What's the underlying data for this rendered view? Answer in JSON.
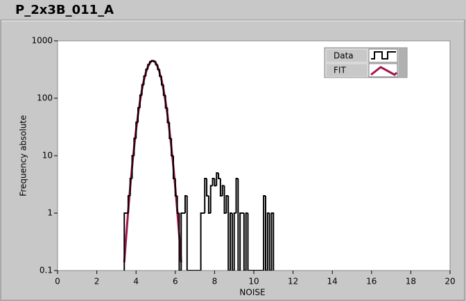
{
  "chart_data": {
    "type": "histogram",
    "title": "P_2x3B_011_A",
    "xlabel": "NOISE",
    "ylabel": "Frequency absolute",
    "xlim": [
      0,
      20
    ],
    "ylim": [
      0.1,
      1000
    ],
    "yscale": "log",
    "xticks": [
      0,
      2,
      4,
      6,
      8,
      10,
      12,
      14,
      16,
      18,
      20
    ],
    "yticks": [
      0.1,
      1,
      10,
      100,
      1000
    ],
    "legend": "top-right",
    "series": [
      {
        "name": "Data",
        "type": "histogram",
        "color": "#000000",
        "bins": [
          3.4,
          3.5,
          3.6,
          3.7,
          3.8,
          3.9,
          4.0,
          4.1,
          4.2,
          4.3,
          4.4,
          4.5,
          4.6,
          4.7,
          4.8,
          4.9,
          5.0,
          5.1,
          5.2,
          5.3,
          5.4,
          5.5,
          5.6,
          5.7,
          5.8,
          5.9,
          6.0,
          6.1,
          6.2,
          6.3,
          6.4,
          6.5,
          6.6,
          6.7,
          6.8,
          6.9,
          7.0,
          7.1,
          7.2,
          7.3,
          7.4,
          7.5,
          7.6,
          7.7,
          7.8,
          7.9,
          8.0,
          8.1,
          8.2,
          8.3,
          8.4,
          8.5,
          8.6,
          8.7,
          8.8,
          8.9,
          9.0,
          9.1,
          9.2,
          9.3,
          9.4,
          9.5,
          9.6,
          9.7,
          9.8,
          9.9,
          10.0,
          10.1,
          10.2,
          10.3,
          10.4,
          10.5,
          10.6,
          10.7,
          10.8,
          10.9,
          11.0
        ],
        "values": [
          1,
          1,
          2,
          4,
          10,
          20,
          38,
          68,
          113,
          172,
          243,
          318,
          386,
          433,
          450,
          440,
          386,
          318,
          243,
          172,
          113,
          68,
          38,
          20,
          10,
          4,
          2,
          1,
          0,
          1,
          1,
          2,
          0,
          0,
          0,
          0,
          0,
          0,
          0,
          1,
          1,
          4,
          2,
          1,
          3,
          4,
          3,
          5,
          4,
          2,
          3,
          1,
          2,
          0,
          1,
          0,
          1,
          4,
          0,
          1,
          1,
          0,
          1,
          0,
          0,
          0,
          0,
          0,
          0,
          0,
          0,
          2,
          0,
          1,
          0,
          1
        ]
      },
      {
        "name": "FIT",
        "type": "line",
        "color": "#a0144a",
        "x": [
          3.4,
          3.5,
          3.6,
          3.7,
          3.8,
          3.9,
          4.0,
          4.1,
          4.2,
          4.3,
          4.4,
          4.5,
          4.6,
          4.7,
          4.8,
          4.9,
          5.0,
          5.1,
          5.2,
          5.3,
          5.4,
          5.5,
          5.6,
          5.7,
          5.8,
          5.9,
          6.0,
          6.1,
          6.2,
          6.3
        ],
        "values": [
          0.139,
          0.405,
          1.1,
          2.78,
          6.48,
          14.0,
          27.9,
          51.8,
          88.6,
          141,
          207,
          281,
          354,
          413,
          446,
          446,
          413,
          354,
          281,
          207,
          141,
          88.6,
          51.8,
          27.9,
          14.0,
          6.48,
          2.78,
          1.1,
          0.405,
          0.139
        ]
      }
    ]
  }
}
